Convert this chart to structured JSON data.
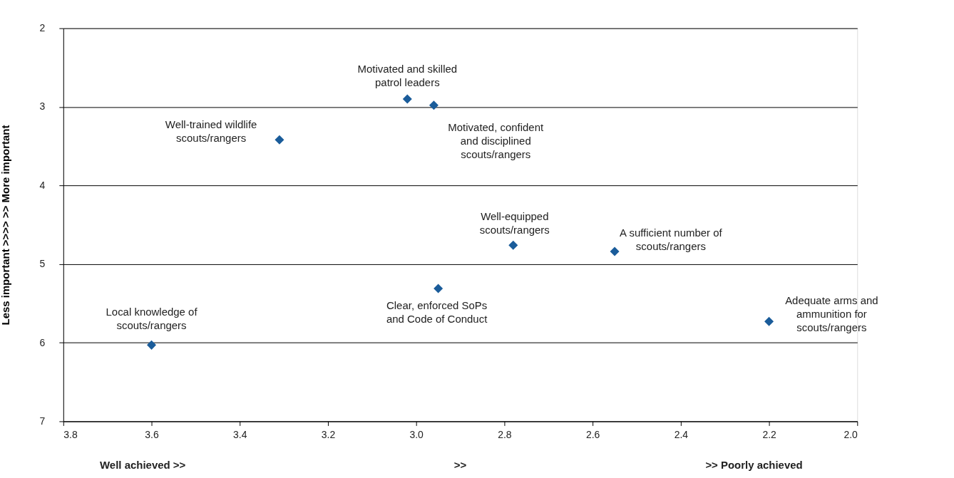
{
  "chart_data": {
    "type": "scatter",
    "ylabel": "Less important >>>>     >> More important",
    "x": [
      3.6,
      3.31,
      3.02,
      2.96,
      2.78,
      2.95,
      2.55,
      2.2
    ],
    "values": [
      6.03,
      3.42,
      2.9,
      2.98,
      4.76,
      5.31,
      4.84,
      5.73
    ],
    "color": "#1a5c9a",
    "marker": "diamond",
    "xlim": [
      3.8,
      2.0
    ],
    "xticks": [
      {
        "value": 3.8,
        "label": "3.8"
      },
      {
        "value": 3.6,
        "label": "3.6"
      },
      {
        "value": 3.4,
        "label": "3.4"
      },
      {
        "value": 3.2,
        "label": "3.2"
      },
      {
        "value": 3.0,
        "label": "3.0"
      },
      {
        "value": 2.8,
        "label": "2.8"
      },
      {
        "value": 2.6,
        "label": "2.6"
      },
      {
        "value": 2.4,
        "label": "2.4"
      },
      {
        "value": 2.2,
        "label": "2.2"
      },
      {
        "value": 2.0,
        "label": "2.0"
      }
    ],
    "ylim": [
      7,
      2
    ],
    "yticks": [
      2,
      3,
      4,
      5,
      6,
      7
    ],
    "grid": "y",
    "annotations": [
      {
        "text": "Local knowledge of\nscouts/rangers",
        "x": 3.6,
        "y": 6.03
      },
      {
        "text": "Well-trained wildlife\nscouts/rangers",
        "x": 3.31,
        "y": 3.42
      },
      {
        "text": "Motivated and skilled\npatrol leaders",
        "x": 3.02,
        "y": 2.9
      },
      {
        "text": "Motivated, confident\nand disciplined\nscouts/rangers",
        "x": 2.96,
        "y": 2.98
      },
      {
        "text": "Well-equipped\nscouts/rangers",
        "x": 2.78,
        "y": 4.76
      },
      {
        "text": "Clear, enforced SoPs\nand Code of Conduct",
        "x": 2.95,
        "y": 5.31
      },
      {
        "text": "A sufficient number of\nscouts/rangers",
        "x": 2.55,
        "y": 4.84
      },
      {
        "text": "Adequate arms and\nammunition for\nscouts/rangers",
        "x": 2.2,
        "y": 5.73
      },
      "Well achieved  >>",
      ">>",
      ">>  Poorly achieved"
    ]
  }
}
